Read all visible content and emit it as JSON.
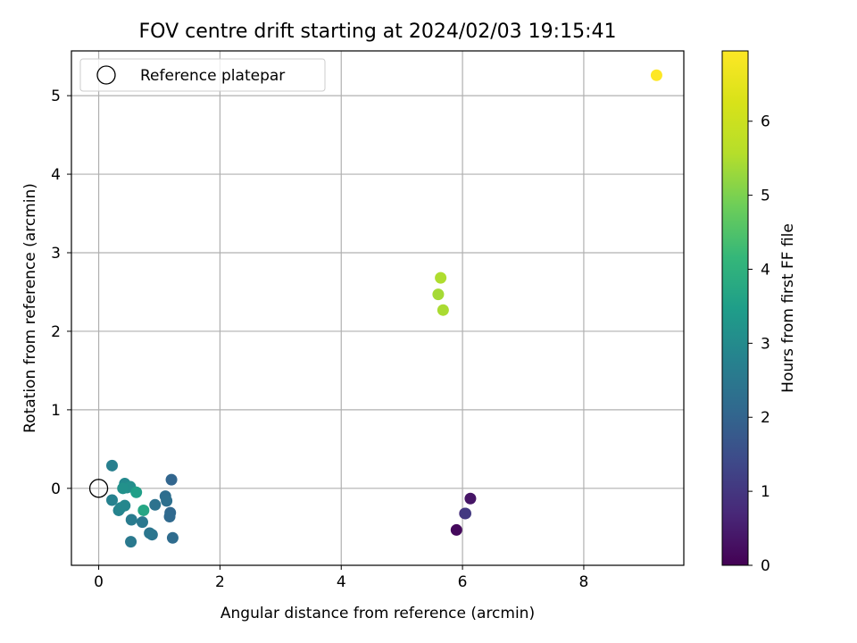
{
  "chart_data": {
    "type": "scatter",
    "title": "FOV centre drift starting at 2024/02/03 19:15:41",
    "xlabel": "Angular distance from reference (arcmin)",
    "ylabel": "Rotation from reference (arcmin)",
    "xlim": [
      -0.45,
      9.65
    ],
    "ylim": [
      -0.98,
      5.57
    ],
    "xticks": [
      0,
      2,
      4,
      6,
      8
    ],
    "yticks": [
      0,
      1,
      2,
      3,
      4,
      5
    ],
    "grid": true,
    "colormap": "viridis",
    "colorbar": {
      "label": "Hours from first FF file",
      "range": [
        0,
        6.95
      ],
      "ticks": [
        0,
        1,
        2,
        3,
        4,
        5,
        6
      ]
    },
    "legend": {
      "position": "top-left",
      "entries": [
        {
          "label": "Reference platepar",
          "marker": "open-circle"
        }
      ]
    },
    "reference_point": {
      "x": 0,
      "y": 0
    },
    "points": [
      {
        "x": 5.9,
        "y": -0.53,
        "hours": 0.15
      },
      {
        "x": 6.13,
        "y": -0.13,
        "hours": 0.35
      },
      {
        "x": 6.04,
        "y": -0.32,
        "hours": 0.75
      },
      {
        "x": 6.05,
        "y": -0.32,
        "hours": 1.05
      },
      {
        "x": 1.2,
        "y": 0.11,
        "hours": 2.05
      },
      {
        "x": 1.18,
        "y": -0.31,
        "hours": 2.1
      },
      {
        "x": 1.17,
        "y": -0.36,
        "hours": 2.15
      },
      {
        "x": 1.22,
        "y": -0.63,
        "hours": 2.2
      },
      {
        "x": 1.1,
        "y": -0.1,
        "hours": 2.25
      },
      {
        "x": 1.12,
        "y": -0.16,
        "hours": 2.3
      },
      {
        "x": 0.93,
        "y": -0.21,
        "hours": 2.35
      },
      {
        "x": 0.88,
        "y": -0.59,
        "hours": 2.4
      },
      {
        "x": 0.84,
        "y": -0.57,
        "hours": 2.45
      },
      {
        "x": 0.72,
        "y": -0.43,
        "hours": 2.5
      },
      {
        "x": 0.53,
        "y": -0.68,
        "hours": 2.55
      },
      {
        "x": 0.54,
        "y": -0.4,
        "hours": 2.6
      },
      {
        "x": 0.22,
        "y": 0.29,
        "hours": 2.7
      },
      {
        "x": 0.22,
        "y": -0.15,
        "hours": 2.75
      },
      {
        "x": 0.33,
        "y": -0.28,
        "hours": 2.8
      },
      {
        "x": 0.36,
        "y": -0.25,
        "hours": 2.85
      },
      {
        "x": 0.43,
        "y": -0.22,
        "hours": 2.9
      },
      {
        "x": 0.43,
        "y": 0.06,
        "hours": 2.95
      },
      {
        "x": 0.47,
        "y": 0.01,
        "hours": 3.0
      },
      {
        "x": 0.52,
        "y": 0.02,
        "hours": 3.1
      },
      {
        "x": 0.4,
        "y": 0.0,
        "hours": 3.15
      },
      {
        "x": 0.62,
        "y": -0.05,
        "hours": 3.5
      },
      {
        "x": 0.74,
        "y": -0.28,
        "hours": 3.7
      },
      {
        "x": 5.6,
        "y": 2.47,
        "hours": 5.4
      },
      {
        "x": 5.64,
        "y": 2.68,
        "hours": 5.5
      },
      {
        "x": 5.68,
        "y": 2.27,
        "hours": 5.45
      },
      {
        "x": 9.2,
        "y": 5.26,
        "hours": 6.95
      }
    ]
  }
}
